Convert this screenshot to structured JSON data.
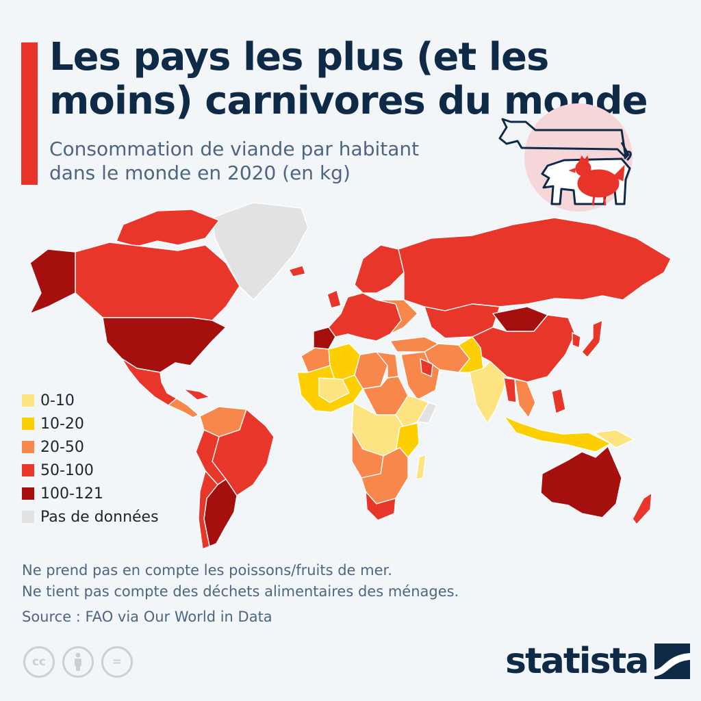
{
  "header": {
    "title": "Les pays les plus (et les moins) carnivores du monde",
    "subtitle": "Consommation de viande par habitant dans le monde en 2020 (en kg)"
  },
  "colors": {
    "accent": "#e8332b",
    "title": "#0e2a47",
    "subtitle": "#4d6580",
    "range_0_10": "#fde480",
    "range_10_20": "#fdce00",
    "range_20_50": "#f7874a",
    "range_50_100": "#e8362b",
    "range_100_121": "#a5100f",
    "no_data": "#e2e2e2"
  },
  "legend": {
    "items": [
      {
        "label": "0-10",
        "color": "#fde480"
      },
      {
        "label": "10-20",
        "color": "#fdce00"
      },
      {
        "label": "20-50",
        "color": "#f7874a"
      },
      {
        "label": "50-100",
        "color": "#e8362b"
      },
      {
        "label": "100-121",
        "color": "#a5100f"
      },
      {
        "label": "Pas de données",
        "color": "#e2e2e2"
      }
    ]
  },
  "notes": {
    "line1": "Ne prend pas en compte les poissons/fruits de mer.",
    "line2": "Ne tient pas compte des déchets alimentaires des ménages.",
    "source": "Source : FAO via Our World in Data"
  },
  "license_icons": [
    "cc-icon",
    "attribution-icon",
    "no-derivatives-icon"
  ],
  "license_text": {
    "cc": "cc",
    "eq": "="
  },
  "brand": {
    "name": "statista"
  },
  "icons": [
    "cow-icon",
    "pig-icon",
    "chicken-icon",
    "statista-logo-icon"
  ]
}
